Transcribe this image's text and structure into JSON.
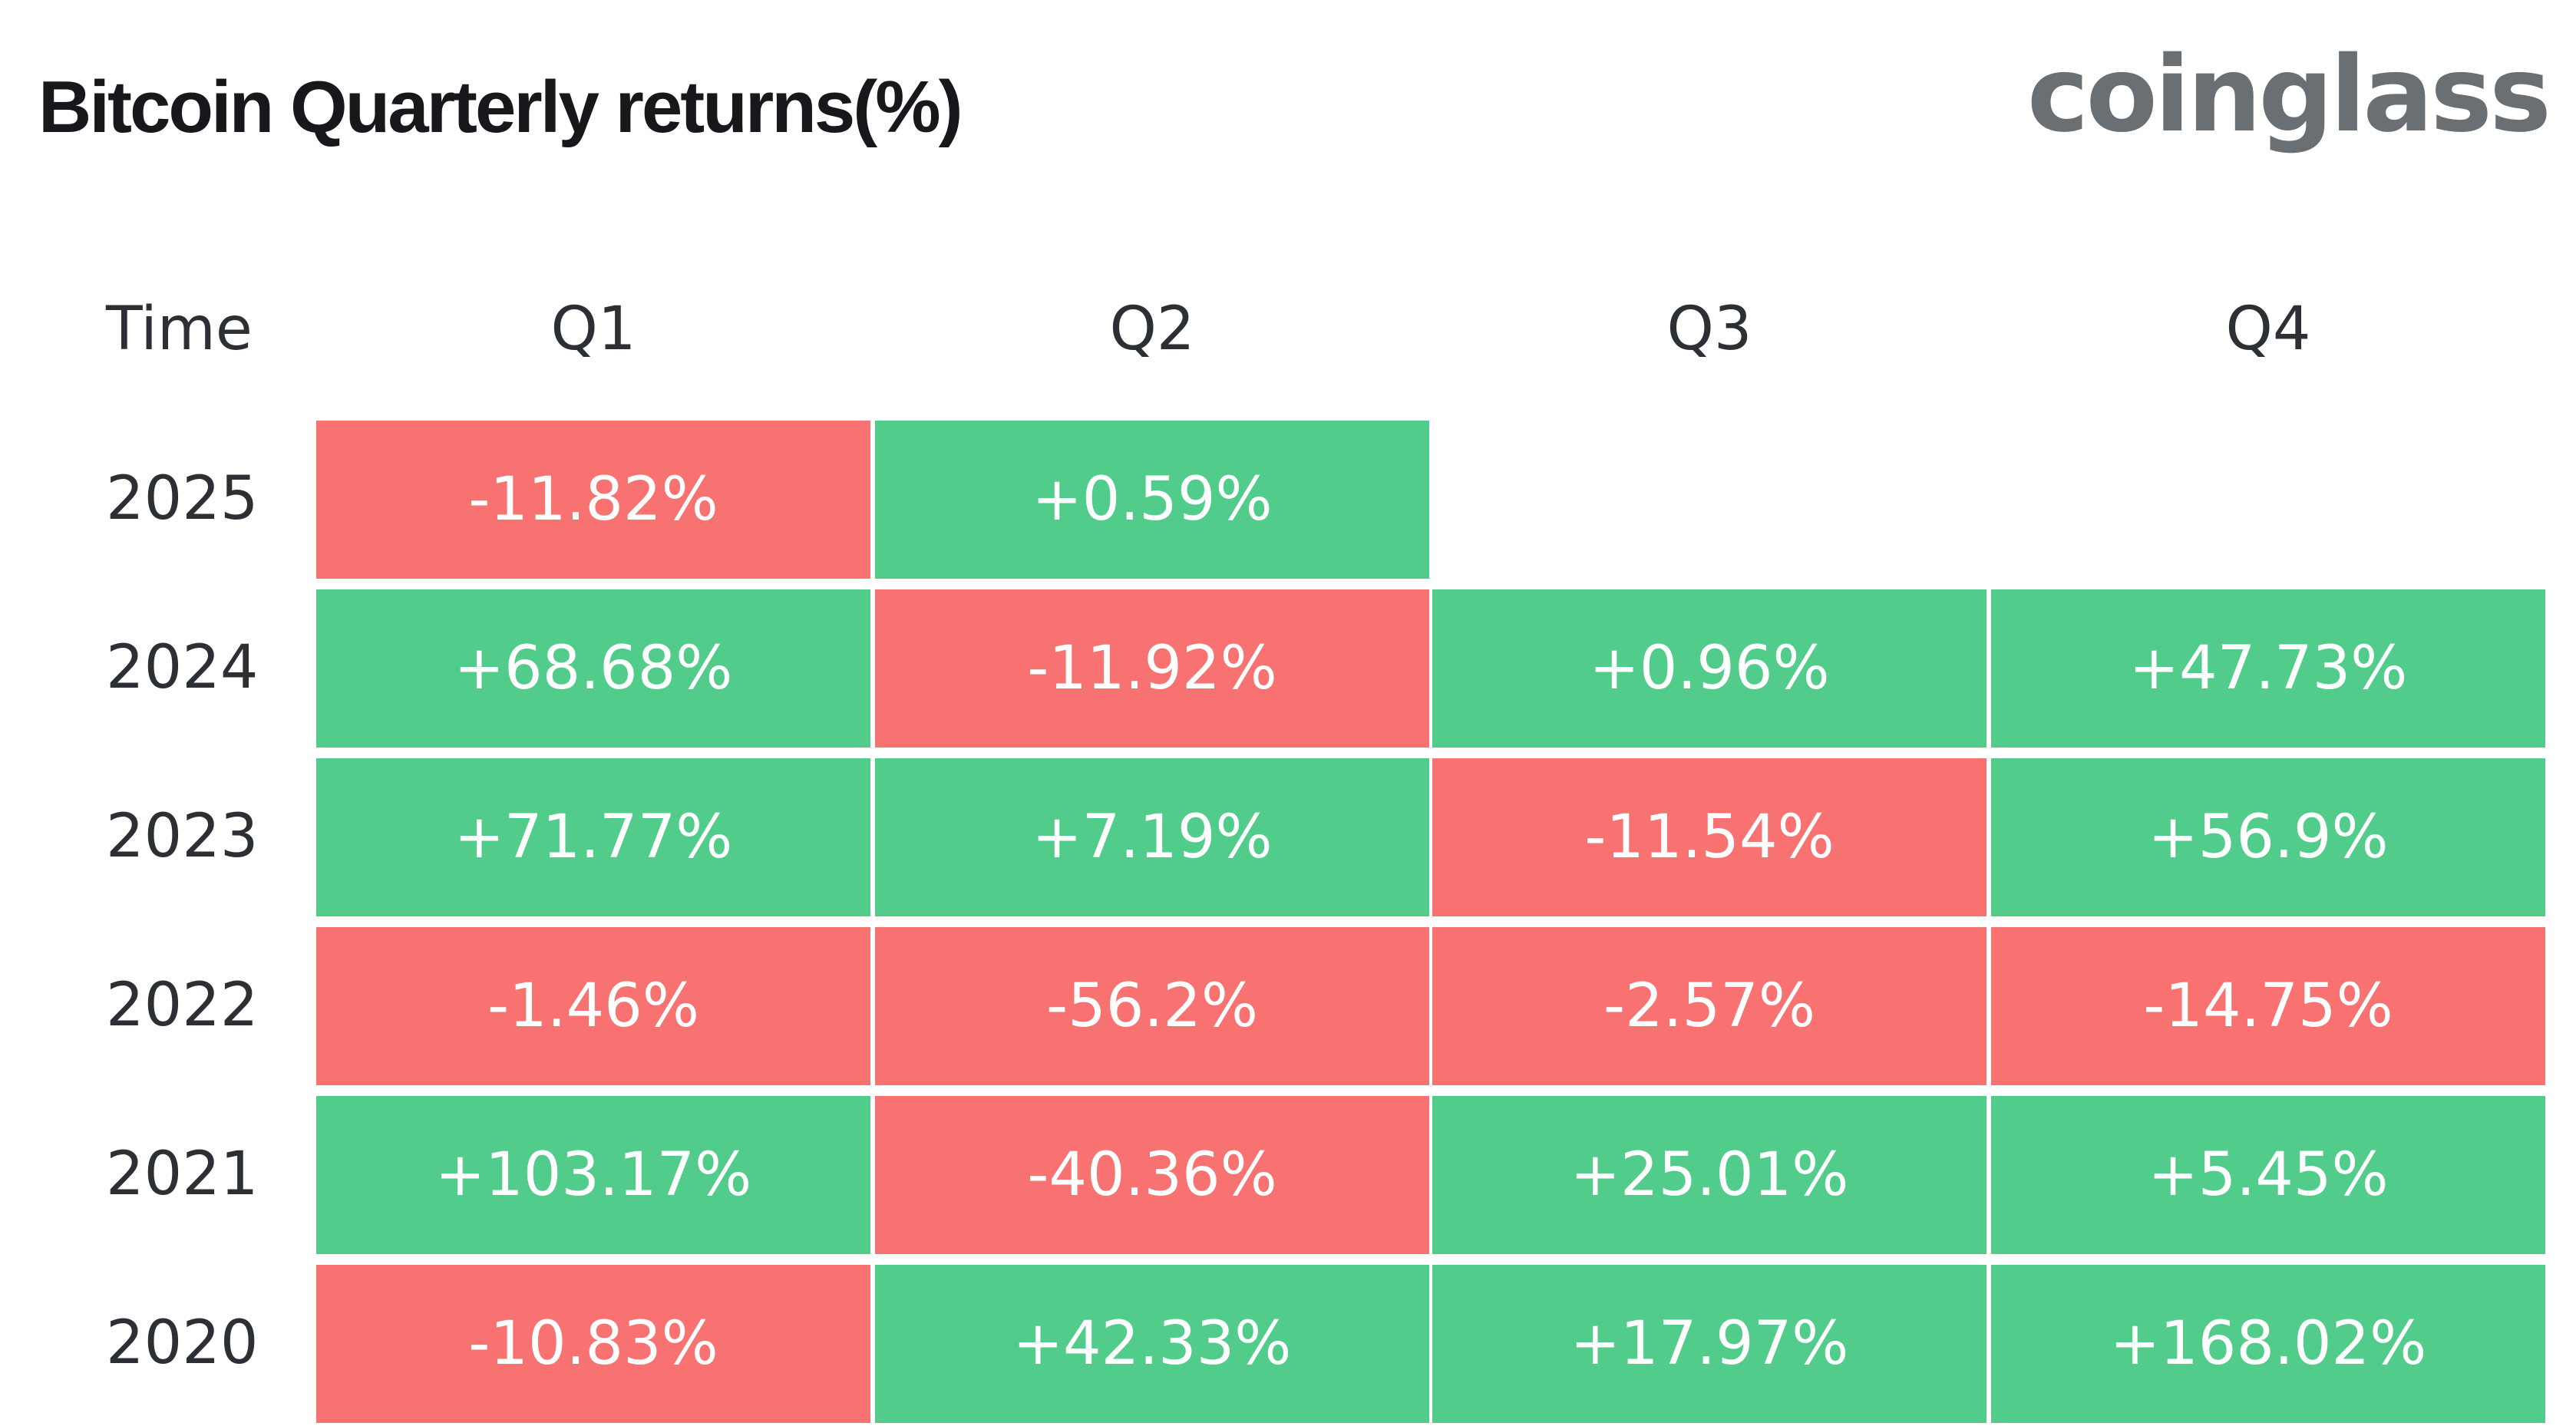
{
  "header": {
    "title": "Bitcoin Quarterly returns(%)",
    "brand": "coinglass"
  },
  "colors": {
    "positive": "#52cc8a",
    "negative": "#f87272",
    "brand": "#6a6f74",
    "title": "#16181c"
  },
  "chart_data": {
    "type": "heatmap",
    "title": "Bitcoin Quarterly returns(%)",
    "row_header": "Time",
    "columns": [
      "Q1",
      "Q2",
      "Q3",
      "Q4"
    ],
    "rows": [
      "2025",
      "2024",
      "2023",
      "2022",
      "2021",
      "2020"
    ],
    "values": [
      [
        -11.82,
        0.59,
        null,
        null
      ],
      [
        68.68,
        -11.92,
        0.96,
        47.73
      ],
      [
        71.77,
        7.19,
        -11.54,
        56.9
      ],
      [
        -1.46,
        -56.2,
        -2.57,
        -14.75
      ],
      [
        103.17,
        -40.36,
        25.01,
        5.45
      ],
      [
        -10.83,
        42.33,
        17.97,
        168.02
      ]
    ],
    "labels": [
      [
        "-11.82%",
        "+0.59%",
        "",
        ""
      ],
      [
        "+68.68%",
        "-11.92%",
        "+0.96%",
        "+47.73%"
      ],
      [
        "+71.77%",
        "+7.19%",
        "-11.54%",
        "+56.9%"
      ],
      [
        "-1.46%",
        "-56.2%",
        "-2.57%",
        "-14.75%"
      ],
      [
        "+103.17%",
        "-40.36%",
        "+25.01%",
        "+5.45%"
      ],
      [
        "-10.83%",
        "+42.33%",
        "+17.97%",
        "+168.02%"
      ]
    ],
    "unit": "%"
  }
}
